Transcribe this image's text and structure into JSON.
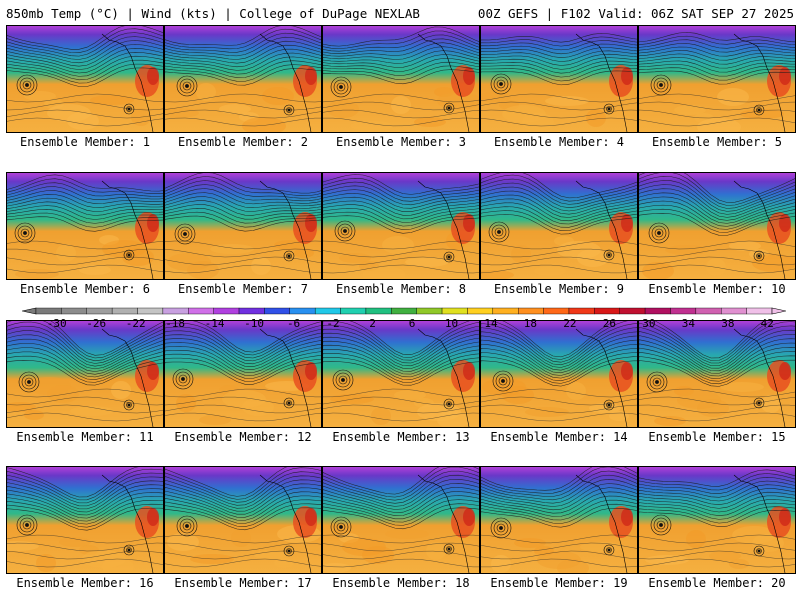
{
  "header": {
    "left_text": "850mb Temp (°C) | Wind (kts) | College of DuPage NEXLAB",
    "right_text": "00Z GEFS | F102 Valid: 06Z SAT SEP 27 2025"
  },
  "members": [
    {
      "label": "Ensemble Member: 1"
    },
    {
      "label": "Ensemble Member: 2"
    },
    {
      "label": "Ensemble Member: 3"
    },
    {
      "label": "Ensemble Member: 4"
    },
    {
      "label": "Ensemble Member: 5"
    },
    {
      "label": "Ensemble Member: 6"
    },
    {
      "label": "Ensemble Member: 7"
    },
    {
      "label": "Ensemble Member: 8"
    },
    {
      "label": "Ensemble Member: 9"
    },
    {
      "label": "Ensemble Member: 10"
    },
    {
      "label": "Ensemble Member: 11"
    },
    {
      "label": "Ensemble Member: 12"
    },
    {
      "label": "Ensemble Member: 13"
    },
    {
      "label": "Ensemble Member: 14"
    },
    {
      "label": "Ensemble Member: 15"
    },
    {
      "label": "Ensemble Member: 16"
    },
    {
      "label": "Ensemble Member: 17"
    },
    {
      "label": "Ensemble Member: 18"
    },
    {
      "label": "Ensemble Member: 19"
    },
    {
      "label": "Ensemble Member: 20"
    }
  ],
  "colorbar": {
    "tick_labels": [
      "-30",
      "-26",
      "-22",
      "-18",
      "-14",
      "-10",
      "-6",
      "-2",
      "2",
      "6",
      "10",
      "14",
      "18",
      "22",
      "26",
      "30",
      "34",
      "38",
      "42"
    ],
    "colors": [
      "#7a7a7a",
      "#8c8c8c",
      "#9e9e9e",
      "#b0b0b0",
      "#c4c4c4",
      "#c8a0e0",
      "#d070e8",
      "#b040e0",
      "#7030e0",
      "#3050e8",
      "#2890f0",
      "#20c8e8",
      "#20d0b0",
      "#20c080",
      "#40b040",
      "#90c828",
      "#e0e020",
      "#ffd020",
      "#ffb020",
      "#ff9020",
      "#ff6818",
      "#f03818",
      "#d81818",
      "#c01030",
      "#b01060",
      "#c03090",
      "#d060b0",
      "#e090d0",
      "#f0c0e8"
    ]
  },
  "map_palette": {
    "warm": [
      "#f0a030",
      "#f5b040",
      "#fab84a",
      "#f29a28"
    ],
    "cold": [
      "#30b888",
      "#28a8b0",
      "#3070d0",
      "#6a38c8",
      "#b040d8"
    ],
    "hot": [
      "#e85020",
      "#d02818"
    ]
  }
}
